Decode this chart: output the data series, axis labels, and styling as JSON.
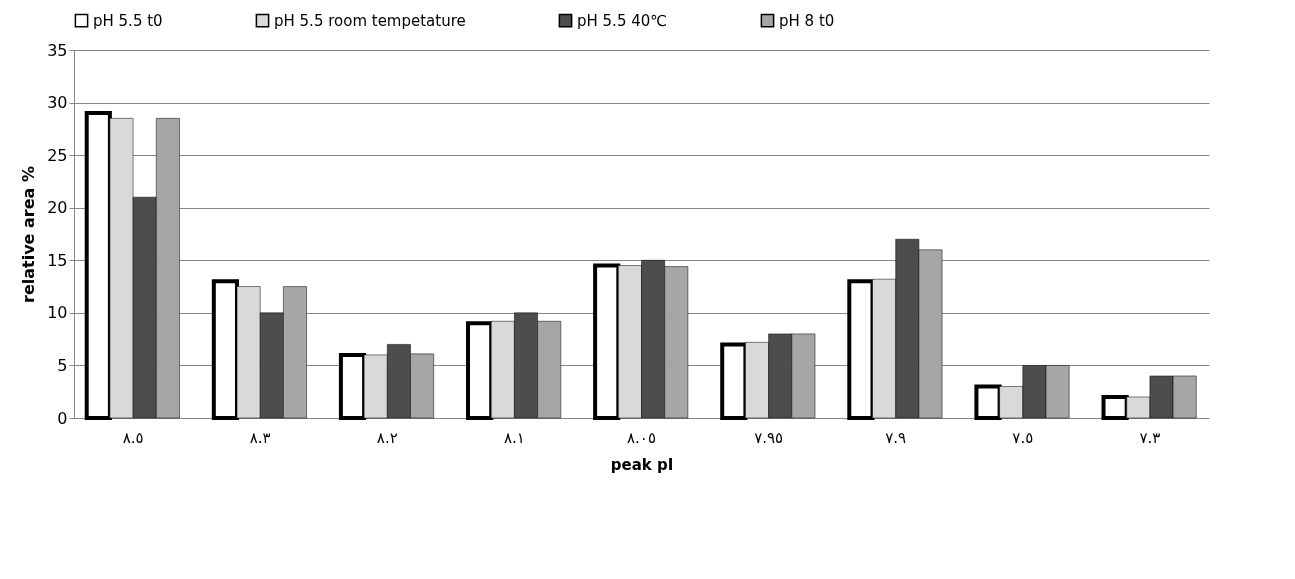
{
  "chart_data": {
    "type": "bar",
    "xlabel": "peak pI",
    "ylabel": "relative area %",
    "categories": [
      "٨.٥",
      "٨.٣",
      "٨.٢",
      "٨.١",
      "٨.٠٥",
      "٧.٩٥",
      "٧.٩",
      "٧.٥",
      "٧.٣"
    ],
    "series": [
      {
        "name": "pH 5.5 t0",
        "color": "#ffffff",
        "values": [
          29,
          13,
          6,
          9,
          14.5,
          7,
          13,
          3,
          2
        ]
      },
      {
        "name": "pH 5.5 room tempetature",
        "color": "#d9d9d9",
        "values": [
          28.5,
          12.5,
          6,
          9.2,
          14.5,
          7.2,
          13.2,
          3,
          2
        ]
      },
      {
        "name": "pH 5.5 40℃",
        "color": "#4d4d4d",
        "values": [
          21,
          10,
          7,
          10,
          15,
          8,
          17,
          5,
          4
        ]
      },
      {
        "name": "pH 8 t0",
        "color": "#a6a6a6",
        "values": [
          28.5,
          12.5,
          6.1,
          9.2,
          14.4,
          8,
          16,
          5,
          4
        ]
      }
    ],
    "ylim": [
      0,
      35
    ],
    "yticks": [
      0,
      5,
      10,
      15,
      20,
      25,
      30,
      35
    ],
    "grid": "y",
    "legend": "top left"
  }
}
